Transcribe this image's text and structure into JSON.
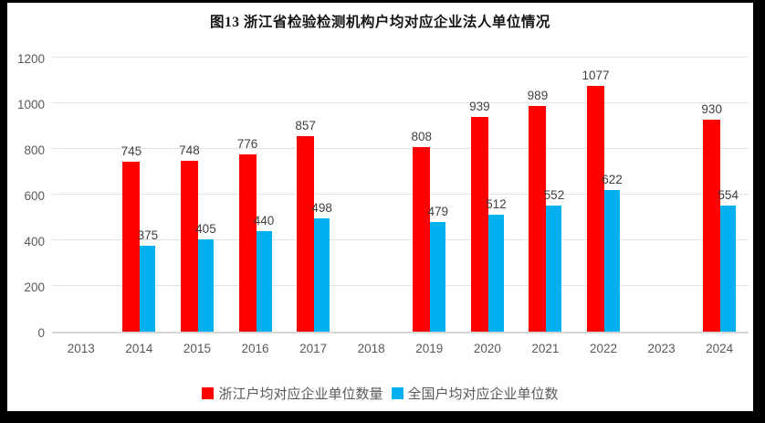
{
  "title": "图13 浙江省检验检测机构户均对应企业法人单位情况",
  "colors": {
    "series1": "#fe0000",
    "series2": "#00b0f0",
    "gridline": "#e2e2e2",
    "axis_line": "#d6d6d6",
    "axis_text": "#595959",
    "data_label_text": "#3f3f3f",
    "frame": "#000000",
    "background": "#ffffff"
  },
  "chart_data": {
    "type": "bar",
    "title": "图13 浙江省检验检测机构户均对应企业法人单位情况",
    "categories": [
      "2013",
      "2014",
      "2015",
      "2016",
      "2017",
      "2018",
      "2019",
      "2020",
      "2021",
      "2022",
      "2023",
      "2024"
    ],
    "series": [
      {
        "name": "浙江户均对应企业单位数量",
        "color": "#fe0000",
        "values": [
          null,
          745,
          748,
          776,
          857,
          null,
          808,
          939,
          989,
          1077,
          null,
          930
        ]
      },
      {
        "name": "全国户均对应企业单位数",
        "color": "#00b0f0",
        "values": [
          null,
          375,
          405,
          440,
          498,
          null,
          479,
          512,
          552,
          622,
          null,
          554
        ]
      }
    ],
    "ylim": [
      0,
      1200
    ],
    "yticks": [
      0,
      200,
      400,
      600,
      800,
      1000,
      1200
    ],
    "grid": true,
    "data_labels": true,
    "legend_position": "bottom"
  }
}
